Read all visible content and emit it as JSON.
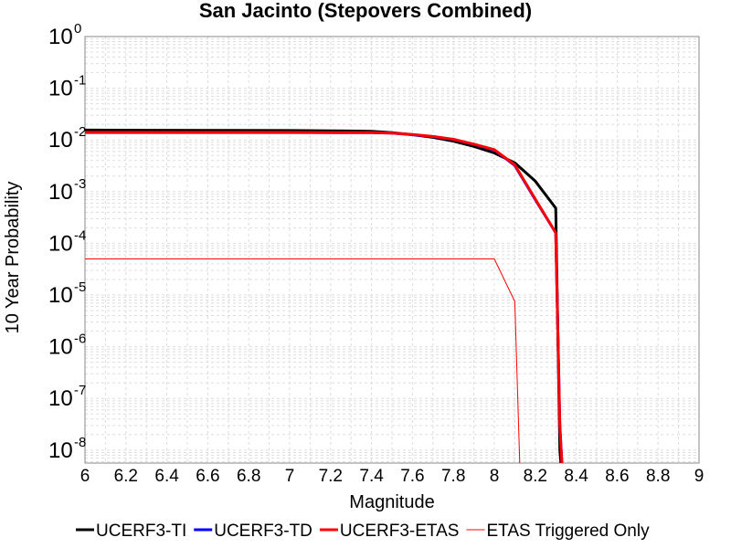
{
  "chart_data": {
    "type": "line",
    "title": "San Jacinto (Stepovers Combined)",
    "xlabel": "Magnitude",
    "ylabel": "10 Year Probability",
    "xlim": [
      6,
      9
    ],
    "ylim_log10": [
      -8.25,
      0
    ],
    "y_scale": "log",
    "grid": true,
    "x_ticks": [
      "6",
      "6.2",
      "6.4",
      "6.6",
      "6.8",
      "7",
      "7.2",
      "7.4",
      "7.6",
      "7.8",
      "8",
      "8.2",
      "8.4",
      "8.6",
      "8.8",
      "9"
    ],
    "y_ticks": [
      {
        "base": "10",
        "exp": "0",
        "log": 0
      },
      {
        "base": "10",
        "exp": "-1",
        "log": -1
      },
      {
        "base": "10",
        "exp": "-2",
        "log": -2
      },
      {
        "base": "10",
        "exp": "-3",
        "log": -3
      },
      {
        "base": "10",
        "exp": "-4",
        "log": -4
      },
      {
        "base": "10",
        "exp": "-5",
        "log": -5
      },
      {
        "base": "10",
        "exp": "-6",
        "log": -6
      },
      {
        "base": "10",
        "exp": "-7",
        "log": -7
      },
      {
        "base": "10",
        "exp": "-8",
        "log": -8
      }
    ],
    "legend_position": "bottom",
    "series": [
      {
        "name": "UCERF3-TI",
        "color": "#000000",
        "width": 3,
        "x": [
          6.0,
          6.3,
          6.7,
          7.0,
          7.2,
          7.4,
          7.5,
          7.6,
          7.7,
          7.8,
          7.9,
          8.0,
          8.1,
          8.2,
          8.3,
          8.32,
          8.34
        ],
        "y": [
          0.0155,
          0.0154,
          0.0153,
          0.0152,
          0.015,
          0.0147,
          0.0138,
          0.0126,
          0.0112,
          0.0095,
          0.0075,
          0.0056,
          0.0036,
          0.0016,
          0.00048,
          1e-08,
          1e-09
        ]
      },
      {
        "name": "UCERF3-TD",
        "color": "#0000ff",
        "width": 3,
        "x": [
          6.0,
          6.3,
          6.7,
          7.0,
          7.2,
          7.4,
          7.5,
          7.6,
          7.7,
          7.8,
          7.9,
          8.0,
          8.1,
          8.2,
          8.3,
          8.32,
          8.34
        ],
        "y": [
          0.0139,
          0.0139,
          0.0139,
          0.0139,
          0.0138,
          0.0138,
          0.0135,
          0.0126,
          0.0116,
          0.0102,
          0.0082,
          0.0064,
          0.0032,
          0.0007,
          0.00016,
          3e-08,
          1e-09
        ]
      },
      {
        "name": "UCERF3-ETAS",
        "color": "#ff0000",
        "width": 3,
        "x": [
          6.0,
          6.3,
          6.7,
          7.0,
          7.2,
          7.4,
          7.5,
          7.6,
          7.7,
          7.8,
          7.9,
          8.0,
          8.1,
          8.2,
          8.3,
          8.32,
          8.34
        ],
        "y": [
          0.014,
          0.014,
          0.014,
          0.014,
          0.0139,
          0.0139,
          0.0136,
          0.0127,
          0.0117,
          0.0103,
          0.0083,
          0.0065,
          0.0033,
          0.00072,
          0.00016,
          3e-08,
          1e-09
        ]
      },
      {
        "name": "ETAS Triggered Only",
        "color": "#ff0000",
        "width": 1,
        "x": [
          6.0,
          7.0,
          8.0,
          8.1,
          8.13
        ],
        "y": [
          5e-05,
          5e-05,
          5e-05,
          7.5e-06,
          1e-09
        ]
      }
    ]
  }
}
